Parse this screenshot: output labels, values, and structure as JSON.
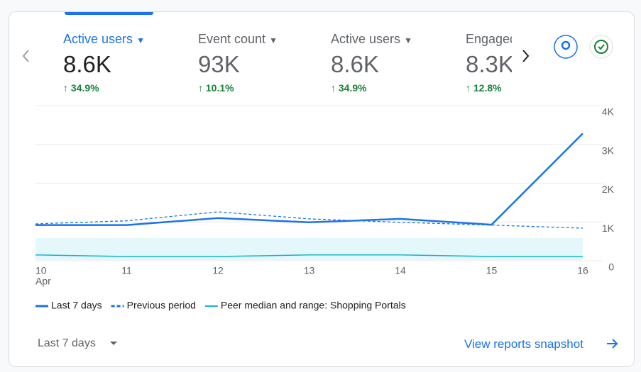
{
  "metrics": [
    {
      "label": "Active users",
      "value": "8.6K",
      "change": "34.9%"
    },
    {
      "label": "Event count",
      "value": "93K",
      "change": "10.1%"
    },
    {
      "label": "Active users",
      "value": "8.6K",
      "change": "34.9%"
    },
    {
      "label": "Engaged sessions",
      "value": "8.3K",
      "change": "12.8%"
    }
  ],
  "chart_data": {
    "type": "line",
    "categories": [
      "10",
      "11",
      "12",
      "13",
      "14",
      "15",
      "16"
    ],
    "month_label": "Apr",
    "ylim": [
      0,
      4000
    ],
    "yticks": [
      0,
      {
        "value": 1000,
        "label": "1K"
      },
      {
        "value": 2000,
        "label": "2K"
      },
      {
        "value": 3000,
        "label": "3K"
      },
      {
        "value": 4000,
        "label": "4K"
      }
    ],
    "grid": true,
    "series": [
      {
        "name": "Last 7 days",
        "color": "#1a73e8",
        "style": "solid",
        "values": [
          920,
          920,
          1100,
          990,
          1080,
          930,
          3280
        ]
      },
      {
        "name": "Previous period",
        "color": "#1a73e8",
        "style": "dashed",
        "values": [
          950,
          1030,
          1260,
          1080,
          990,
          920,
          840
        ]
      },
      {
        "name": "Peer median and range: Shopping Portals",
        "color": "#12b5cb",
        "style": "band",
        "values": [
          150,
          110,
          110,
          150,
          150,
          110,
          110
        ],
        "range_low": [
          20,
          20,
          20,
          20,
          20,
          20,
          20
        ],
        "range_high": [
          590,
          590,
          590,
          590,
          590,
          590,
          590
        ]
      }
    ]
  },
  "footer": {
    "period": "Last 7 days",
    "link": "View reports snapshot"
  }
}
